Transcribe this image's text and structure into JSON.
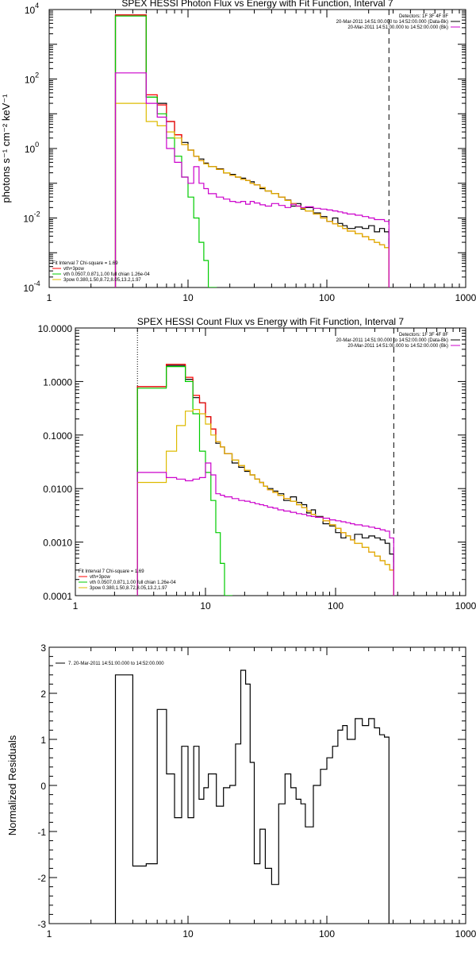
{
  "chart_data": [
    {
      "type": "line",
      "title": "SPEX HESSI Photon Flux vs Energy with Fit Function, Interval 7",
      "ylabel": "photons s⁻¹ cm⁻² keV⁻¹",
      "xlabel": "",
      "xscale": "log",
      "yscale": "log",
      "xlim": [
        1,
        1000
      ],
      "ylim": [
        0.0001,
        10000
      ],
      "xticks": [
        "1",
        "10",
        "100",
        "1000"
      ],
      "yticks": [
        {
          "base": "10",
          "exp": "-4",
          "v": 0.0001
        },
        {
          "base": "10",
          "exp": "-2",
          "v": 0.01
        },
        {
          "base": "10",
          "exp": "0",
          "v": 1
        },
        {
          "base": "10",
          "exp": "2",
          "v": 100
        },
        {
          "base": "10",
          "exp": "4",
          "v": 10000
        }
      ],
      "vlines": [
        {
          "x": 3,
          "color": "#000000",
          "style": "dotted"
        },
        {
          "x": 280,
          "color": "#000000",
          "style": "dashed"
        }
      ],
      "legend_topright": [
        {
          "text": "Detectors: 1F 3F 4F 8F",
          "color": null
        },
        {
          "text": "20-Mar-2011 14:51:00.000 to 14:52:00.000 (Data-Bk)",
          "color": "#000000"
        },
        {
          "text": "20-Mar-2011 14:51:00.000 to 14:52:00.000 (Bk)",
          "color": "#cc00cc"
        }
      ],
      "legend_bottomleft": [
        {
          "text": "Fit Interval 7   Chi-square = 1.69",
          "color": null
        },
        {
          "text": "vth+3pow",
          "color": "#ff0000"
        },
        {
          "text": "vth 0.0507,0.871,1.00  full chian 1.26e-04",
          "color": "#00cc00"
        },
        {
          "text": "3pow 0.380,1.50,8.72,8.05,13.2,1.97",
          "color": "#ddbb00"
        }
      ],
      "x_edges": [
        3,
        4,
        5,
        6,
        7,
        8,
        9,
        10,
        11,
        12,
        13,
        14,
        16,
        18,
        20,
        22,
        24,
        26,
        28,
        30,
        33,
        36,
        40,
        45,
        50,
        55,
        60,
        65,
        70,
        80,
        90,
        100,
        110,
        120,
        130,
        140,
        160,
        180,
        200,
        220,
        240,
        260,
        280
      ],
      "series": [
        {
          "name": "",
          "color": "#000000",
          "values": [
            7000,
            7000,
            30,
            20,
            6,
            2.5,
            1.5,
            0.9,
            0.6,
            0.5,
            0.38,
            0.3,
            0.26,
            0.2,
            0.18,
            0.15,
            0.14,
            0.12,
            0.11,
            0.09,
            0.07,
            0.06,
            0.05,
            0.04,
            0.033,
            0.022,
            0.026,
            0.018,
            0.02,
            0.014,
            0.011,
            0.008,
            0.01,
            0.007,
            0.006,
            0.005,
            0.0055,
            0.005,
            0.006,
            0.004,
            0.005,
            0.004
          ]
        },
        {
          "name": "",
          "color": "#ff0000",
          "values": [
            7000,
            7000,
            35,
            18,
            6,
            2.5,
            1.3,
            0.9,
            0.6,
            0.45,
            0.36,
            0.3,
            0.25,
            0.2,
            0.17,
            0.15,
            0.13,
            0.12,
            0.1,
            0.09,
            0.075,
            0.06,
            0.05,
            0.04,
            0.032,
            0.026,
            0.022,
            0.019,
            0.016,
            0.013,
            0.01,
            0.008,
            0.0068,
            0.0058,
            0.005,
            0.0042,
            0.0035,
            0.0029,
            0.0024,
            0.002,
            0.0017,
            0.0014
          ]
        },
        {
          "name": "",
          "color": "#00cc00",
          "values": [
            6500,
            6500,
            30,
            10,
            2,
            0.6,
            0.15,
            0.04,
            0.01,
            0.002,
            0.0006,
            0.0001
          ]
        },
        {
          "name": "",
          "color": "#ddbb00",
          "values": [
            20,
            20,
            6,
            4.5,
            3,
            2,
            1.3,
            0.9,
            0.6,
            0.45,
            0.36,
            0.3,
            0.25,
            0.2,
            0.17,
            0.15,
            0.13,
            0.12,
            0.1,
            0.09,
            0.075,
            0.06,
            0.05,
            0.04,
            0.032,
            0.026,
            0.022,
            0.019,
            0.016,
            0.013,
            0.01,
            0.008,
            0.0068,
            0.0058,
            0.005,
            0.0042,
            0.0035,
            0.0029,
            0.0024,
            0.002,
            0.0017,
            0.0014
          ]
        },
        {
          "name": "",
          "color": "#cc00cc",
          "values": [
            150,
            150,
            20,
            8,
            1,
            0.4,
            0.15,
            0.1,
            0.3,
            0.1,
            0.07,
            0.05,
            0.04,
            0.035,
            0.03,
            0.028,
            0.03,
            0.025,
            0.03,
            0.027,
            0.024,
            0.022,
            0.026,
            0.023,
            0.02,
            0.025,
            0.022,
            0.02,
            0.021,
            0.019,
            0.018,
            0.017,
            0.016,
            0.015,
            0.014,
            0.013,
            0.012,
            0.011,
            0.01,
            0.009,
            0.009,
            0.008
          ]
        }
      ]
    },
    {
      "type": "line",
      "title": "SPEX HESSI Count Flux vs Energy with Fit Function, Interval 7",
      "ylabel": "",
      "xlabel": "",
      "xscale": "log",
      "yscale": "log",
      "xlim": [
        1,
        1000
      ],
      "ylim": [
        0.0001,
        10
      ],
      "xticks": [
        "1",
        "10",
        "100",
        "1000"
      ],
      "yticks": [
        {
          "base": "0.0001",
          "exp": "",
          "v": 0.0001
        },
        {
          "base": "0.0010",
          "exp": "",
          "v": 0.001
        },
        {
          "base": "0.0100",
          "exp": "",
          "v": 0.01
        },
        {
          "base": "0.1000",
          "exp": "",
          "v": 0.1
        },
        {
          "base": "1.0000",
          "exp": "",
          "v": 1
        },
        {
          "base": "10.0000",
          "exp": "",
          "v": 10
        }
      ],
      "vlines": [
        {
          "x": 3,
          "color": "#000000",
          "style": "dotted"
        },
        {
          "x": 280,
          "color": "#000000",
          "style": "dashed"
        }
      ],
      "legend_topright": [
        {
          "text": "Detectors: 1F 3F 4F 8F",
          "color": null
        },
        {
          "text": "20-Mar-2011 14:51:00.000 to 14:52:00.000 (Data-Bk)",
          "color": "#000000"
        },
        {
          "text": "20-Mar-2011 14:51:00.000 to 14:52:00.000 (Bk)",
          "color": "#cc00cc"
        }
      ],
      "legend_bottomleft": [
        {
          "text": "Fit Interval 7   Chi-square = 1.69",
          "color": null
        },
        {
          "text": "vth+3pow",
          "color": "#ff0000"
        },
        {
          "text": "vth 0.0507,0.871,1.00  full chian 1.26e-04",
          "color": "#00cc00"
        },
        {
          "text": "3pow 0.380,1.50,8.72,8.05,13.2,1.97",
          "color": "#ddbb00"
        }
      ],
      "x_edges": [
        3,
        4,
        5,
        6,
        7,
        8,
        9,
        10,
        11,
        12,
        13,
        14,
        16,
        18,
        20,
        22,
        24,
        26,
        28,
        30,
        33,
        36,
        40,
        45,
        50,
        55,
        60,
        65,
        70,
        80,
        90,
        100,
        110,
        120,
        130,
        140,
        160,
        180,
        200,
        220,
        240,
        260,
        280
      ],
      "series": [
        {
          "name": "",
          "color": "#000000",
          "values": [
            0.8,
            0.8,
            2.0,
            2.0,
            1.1,
            0.5,
            0.4,
            0.22,
            0.13,
            0.07,
            0.06,
            0.045,
            0.03,
            0.025,
            0.021,
            0.018,
            0.015,
            0.013,
            0.011,
            0.01,
            0.009,
            0.008,
            0.006,
            0.007,
            0.0055,
            0.005,
            0.0035,
            0.004,
            0.003,
            0.0022,
            0.002,
            0.0015,
            0.0012,
            0.0013,
            0.0011,
            0.0014,
            0.0012,
            0.0013,
            0.0012,
            0.0011,
            0.00095,
            0.0006
          ]
        },
        {
          "name": "",
          "color": "#ff0000",
          "values": [
            0.8,
            0.8,
            2.1,
            2.1,
            1.2,
            0.55,
            0.4,
            0.22,
            0.13,
            0.075,
            0.06,
            0.045,
            0.034,
            0.027,
            0.022,
            0.018,
            0.015,
            0.013,
            0.011,
            0.0095,
            0.0085,
            0.0075,
            0.0065,
            0.0058,
            0.005,
            0.0044,
            0.0038,
            0.0033,
            0.0029,
            0.0025,
            0.0021,
            0.0018,
            0.0015,
            0.0013,
            0.0011,
            0.00095,
            0.0008,
            0.00065,
            0.00055,
            0.00045,
            0.00038,
            0.0003
          ]
        },
        {
          "name": "",
          "color": "#00cc00",
          "values": [
            0.75,
            0.75,
            1.9,
            1.9,
            1.0,
            0.25,
            0.05,
            0.02,
            0.006,
            0.0015,
            0.0004,
            0.0001
          ]
        },
        {
          "name": "",
          "color": "#ddbb00",
          "values": [
            0.013,
            0.013,
            0.05,
            0.15,
            0.28,
            0.3,
            0.25,
            0.16,
            0.1,
            0.075,
            0.06,
            0.045,
            0.034,
            0.027,
            0.022,
            0.018,
            0.015,
            0.013,
            0.011,
            0.0095,
            0.0085,
            0.0075,
            0.0065,
            0.0058,
            0.005,
            0.0044,
            0.0038,
            0.0033,
            0.0029,
            0.0025,
            0.0021,
            0.0018,
            0.0015,
            0.0013,
            0.0011,
            0.00095,
            0.0008,
            0.00065,
            0.00055,
            0.00045,
            0.00038,
            0.0003
          ]
        },
        {
          "name": "",
          "color": "#cc00cc",
          "values": [
            0.02,
            0.02,
            0.016,
            0.015,
            0.014,
            0.015,
            0.016,
            0.03,
            0.018,
            0.008,
            0.0075,
            0.007,
            0.0065,
            0.006,
            0.0058,
            0.0055,
            0.0052,
            0.005,
            0.0048,
            0.0045,
            0.0043,
            0.004,
            0.0038,
            0.0036,
            0.0034,
            0.0033,
            0.0031,
            0.003,
            0.0029,
            0.0028,
            0.0026,
            0.0025,
            0.0024,
            0.0023,
            0.0022,
            0.0021,
            0.002,
            0.0019,
            0.0018,
            0.0017,
            0.0016,
            0.0012
          ]
        }
      ]
    },
    {
      "type": "line",
      "title": "",
      "ylabel": "Normalized Residuals",
      "xlabel": "",
      "xscale": "log",
      "yscale": "linear",
      "xlim": [
        1,
        1000
      ],
      "ylim": [
        -3,
        3
      ],
      "xticks": [
        "1",
        "10",
        "100",
        "1000"
      ],
      "yticks": [
        {
          "base": "-3",
          "exp": "",
          "v": -3
        },
        {
          "base": "-2",
          "exp": "",
          "v": -2
        },
        {
          "base": "-1",
          "exp": "",
          "v": -1
        },
        {
          "base": "0",
          "exp": "",
          "v": 0
        },
        {
          "base": "1",
          "exp": "",
          "v": 1
        },
        {
          "base": "2",
          "exp": "",
          "v": 2
        },
        {
          "base": "3",
          "exp": "",
          "v": 3
        }
      ],
      "vlines": [],
      "legend_topright": [],
      "legend_bottomleft": [],
      "legend_topleft": [
        {
          "text": "7. 20-Mar-2011 14:51:00.000 to 14:52:00.000",
          "color": "#000000"
        }
      ],
      "x_edges": [
        3,
        4,
        5,
        6,
        7,
        8,
        9,
        10,
        11,
        12,
        13,
        14,
        16,
        18,
        20,
        22,
        24,
        26,
        28,
        30,
        33,
        36,
        40,
        45,
        50,
        55,
        60,
        65,
        70,
        80,
        90,
        100,
        110,
        120,
        130,
        140,
        160,
        180,
        200,
        220,
        240,
        260,
        280
      ],
      "series": [
        {
          "name": "",
          "color": "#000000",
          "values": [
            2.4,
            -1.75,
            -1.7,
            1.65,
            0.25,
            -0.7,
            0.85,
            -0.7,
            0.85,
            -0.3,
            -0.05,
            0.25,
            -0.45,
            -0.05,
            0.0,
            0.9,
            2.5,
            2.2,
            0.5,
            -1.7,
            -0.95,
            -1.8,
            -2.15,
            -0.4,
            0.25,
            -0.05,
            -0.3,
            -0.4,
            -0.9,
            0.0,
            0.35,
            0.6,
            0.85,
            1.2,
            1.3,
            1.0,
            1.45,
            1.3,
            1.45,
            1.25,
            1.1,
            1.05
          ]
        }
      ]
    }
  ]
}
